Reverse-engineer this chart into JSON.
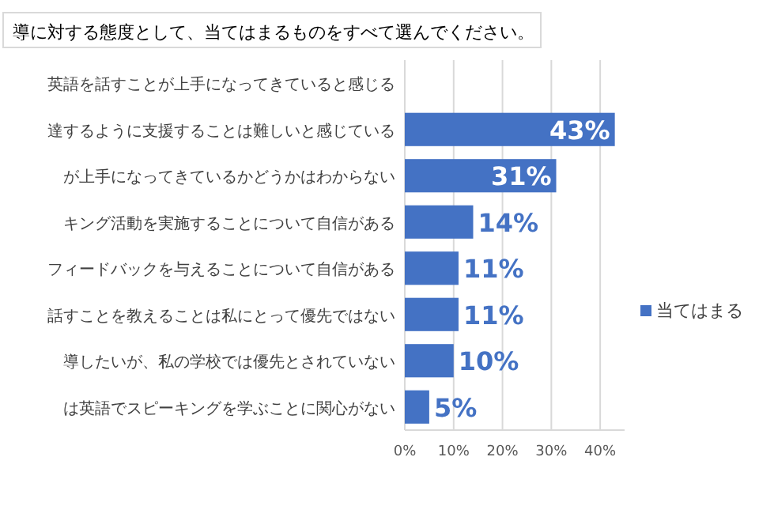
{
  "chart_data": {
    "type": "bar",
    "orientation": "horizontal",
    "title": "導に対する態度として、当てはまるものをすべて選んでください。",
    "categories": [
      "英語を話すことが上手になってきていると感じる",
      "達するように支援することは難しいと感じている",
      "が上手になってきているかどうかはわからない",
      "キング活動を実施することについて自信がある",
      "フィードバックを与えることについて自信がある",
      "話すことを教えることは私にとって優先ではない",
      "導したいが、私の学校では優先とされていない",
      "は英語でスピーキングを学ぶことに関心がない"
    ],
    "series": [
      {
        "name": "当てはまる",
        "color": "#4472c4",
        "values": [
          null,
          43,
          31,
          14,
          11,
          11,
          10,
          5
        ],
        "value_labels": [
          null,
          "43%",
          "31%",
          "14%",
          "11%",
          "11%",
          "10%",
          "5%"
        ]
      }
    ],
    "xlim": [
      0,
      45
    ],
    "xticks": [
      {
        "value": 0,
        "label": "0%"
      },
      {
        "value": 10,
        "label": "10%"
      },
      {
        "value": 20,
        "label": "20%"
      },
      {
        "value": 30,
        "label": "30%"
      },
      {
        "value": 40,
        "label": "40%"
      }
    ],
    "grid": "x",
    "legend": "right"
  }
}
